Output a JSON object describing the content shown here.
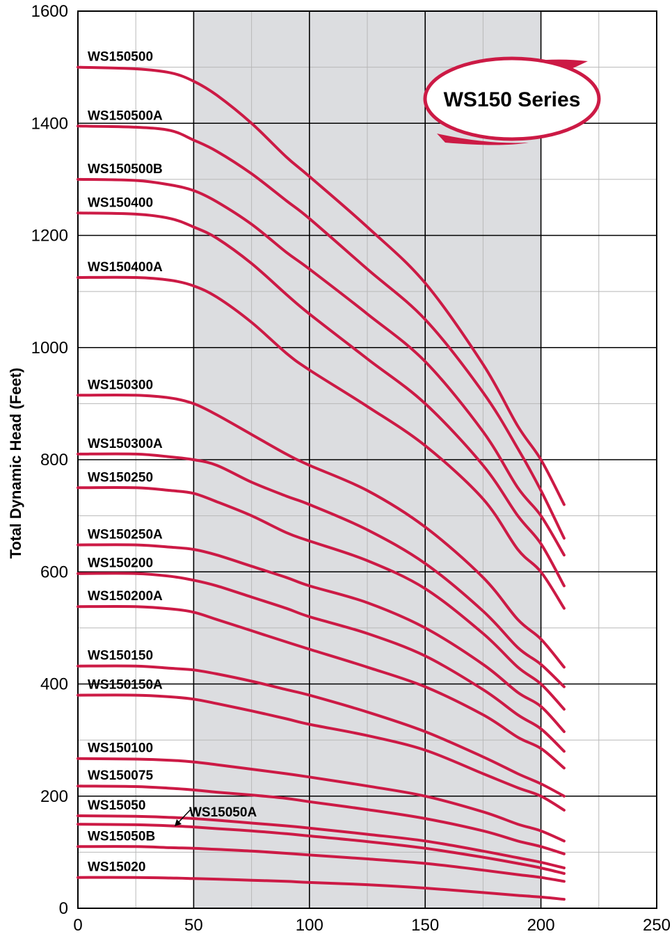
{
  "chart_data": {
    "type": "line",
    "title": "",
    "xlabel": "",
    "ylabel": "Total Dynamic Head (Feet)",
    "xlim": [
      0,
      250
    ],
    "ylim": [
      0,
      1600
    ],
    "xticks": [
      0,
      50,
      100,
      150,
      200,
      250
    ],
    "yticks": [
      0,
      200,
      400,
      600,
      800,
      1000,
      1200,
      1400,
      1600
    ],
    "shaded_range": [
      50,
      200
    ],
    "grid": true,
    "badge": "WS150 Series",
    "colors": {
      "curve": "#cc1a45",
      "shade": "#dcdde0",
      "grid_major": "#000000",
      "grid_minor": "#b8b8b8"
    },
    "series": [
      {
        "name": "WS150500",
        "points": [
          [
            0,
            1500
          ],
          [
            25,
            1497
          ],
          [
            40,
            1490
          ],
          [
            50,
            1475
          ],
          [
            60,
            1450
          ],
          [
            75,
            1400
          ],
          [
            90,
            1340
          ],
          [
            100,
            1305
          ],
          [
            125,
            1215
          ],
          [
            150,
            1115
          ],
          [
            175,
            970
          ],
          [
            190,
            860
          ],
          [
            200,
            800
          ],
          [
            210,
            720
          ]
        ]
      },
      {
        "name": "WS150500A",
        "points": [
          [
            0,
            1395
          ],
          [
            25,
            1393
          ],
          [
            40,
            1387
          ],
          [
            50,
            1370
          ],
          [
            60,
            1350
          ],
          [
            75,
            1310
          ],
          [
            90,
            1262
          ],
          [
            100,
            1230
          ],
          [
            125,
            1140
          ],
          [
            150,
            1050
          ],
          [
            175,
            920
          ],
          [
            190,
            820
          ],
          [
            200,
            745
          ],
          [
            210,
            660
          ]
        ]
      },
      {
        "name": "WS150500B",
        "points": [
          [
            0,
            1300
          ],
          [
            25,
            1298
          ],
          [
            40,
            1290
          ],
          [
            50,
            1280
          ],
          [
            60,
            1260
          ],
          [
            75,
            1220
          ],
          [
            90,
            1170
          ],
          [
            100,
            1140
          ],
          [
            125,
            1060
          ],
          [
            150,
            975
          ],
          [
            175,
            850
          ],
          [
            190,
            750
          ],
          [
            200,
            700
          ],
          [
            210,
            630
          ]
        ]
      },
      {
        "name": "WS150400",
        "points": [
          [
            0,
            1240
          ],
          [
            25,
            1238
          ],
          [
            40,
            1230
          ],
          [
            50,
            1215
          ],
          [
            60,
            1195
          ],
          [
            75,
            1150
          ],
          [
            90,
            1095
          ],
          [
            100,
            1060
          ],
          [
            125,
            980
          ],
          [
            150,
            900
          ],
          [
            175,
            790
          ],
          [
            190,
            700
          ],
          [
            200,
            650
          ],
          [
            210,
            575
          ]
        ]
      },
      {
        "name": "WS150400A",
        "points": [
          [
            0,
            1125
          ],
          [
            25,
            1125
          ],
          [
            40,
            1120
          ],
          [
            50,
            1110
          ],
          [
            60,
            1090
          ],
          [
            75,
            1045
          ],
          [
            90,
            990
          ],
          [
            100,
            960
          ],
          [
            125,
            895
          ],
          [
            150,
            825
          ],
          [
            175,
            730
          ],
          [
            190,
            640
          ],
          [
            200,
            600
          ],
          [
            210,
            535
          ]
        ]
      },
      {
        "name": "WS150300",
        "points": [
          [
            0,
            915
          ],
          [
            25,
            915
          ],
          [
            40,
            910
          ],
          [
            50,
            900
          ],
          [
            60,
            880
          ],
          [
            75,
            845
          ],
          [
            90,
            810
          ],
          [
            100,
            790
          ],
          [
            125,
            745
          ],
          [
            150,
            680
          ],
          [
            175,
            590
          ],
          [
            190,
            515
          ],
          [
            200,
            480
          ],
          [
            210,
            430
          ]
        ]
      },
      {
        "name": "WS150300A",
        "points": [
          [
            0,
            810
          ],
          [
            25,
            810
          ],
          [
            40,
            805
          ],
          [
            50,
            800
          ],
          [
            60,
            790
          ],
          [
            75,
            760
          ],
          [
            90,
            735
          ],
          [
            100,
            720
          ],
          [
            125,
            675
          ],
          [
            150,
            615
          ],
          [
            175,
            530
          ],
          [
            190,
            465
          ],
          [
            200,
            435
          ],
          [
            210,
            395
          ]
        ]
      },
      {
        "name": "WS150250",
        "points": [
          [
            0,
            750
          ],
          [
            25,
            750
          ],
          [
            40,
            745
          ],
          [
            50,
            740
          ],
          [
            60,
            725
          ],
          [
            75,
            700
          ],
          [
            90,
            670
          ],
          [
            100,
            655
          ],
          [
            125,
            620
          ],
          [
            150,
            570
          ],
          [
            175,
            490
          ],
          [
            190,
            430
          ],
          [
            200,
            400
          ],
          [
            210,
            355
          ]
        ]
      },
      {
        "name": "WS150250A",
        "points": [
          [
            0,
            648
          ],
          [
            25,
            648
          ],
          [
            40,
            644
          ],
          [
            50,
            640
          ],
          [
            60,
            630
          ],
          [
            75,
            610
          ],
          [
            90,
            590
          ],
          [
            100,
            575
          ],
          [
            125,
            545
          ],
          [
            150,
            500
          ],
          [
            175,
            435
          ],
          [
            190,
            385
          ],
          [
            200,
            360
          ],
          [
            210,
            315
          ]
        ]
      },
      {
        "name": "WS150200",
        "points": [
          [
            0,
            597
          ],
          [
            25,
            597
          ],
          [
            40,
            592
          ],
          [
            50,
            585
          ],
          [
            60,
            575
          ],
          [
            75,
            555
          ],
          [
            90,
            535
          ],
          [
            100,
            520
          ],
          [
            125,
            490
          ],
          [
            150,
            450
          ],
          [
            175,
            390
          ],
          [
            190,
            345
          ],
          [
            200,
            320
          ],
          [
            210,
            280
          ]
        ]
      },
      {
        "name": "WS150200A",
        "points": [
          [
            0,
            538
          ],
          [
            25,
            538
          ],
          [
            40,
            534
          ],
          [
            50,
            528
          ],
          [
            60,
            515
          ],
          [
            75,
            495
          ],
          [
            90,
            475
          ],
          [
            100,
            462
          ],
          [
            125,
            430
          ],
          [
            150,
            395
          ],
          [
            175,
            345
          ],
          [
            190,
            305
          ],
          [
            200,
            285
          ],
          [
            210,
            250
          ]
        ]
      },
      {
        "name": "WS150150",
        "points": [
          [
            0,
            432
          ],
          [
            25,
            432
          ],
          [
            40,
            428
          ],
          [
            50,
            425
          ],
          [
            60,
            418
          ],
          [
            75,
            405
          ],
          [
            90,
            390
          ],
          [
            100,
            380
          ],
          [
            125,
            350
          ],
          [
            150,
            315
          ],
          [
            175,
            270
          ],
          [
            190,
            240
          ],
          [
            200,
            222
          ],
          [
            210,
            200
          ]
        ]
      },
      {
        "name": "WS150150A",
        "points": [
          [
            0,
            380
          ],
          [
            25,
            380
          ],
          [
            40,
            377
          ],
          [
            50,
            373
          ],
          [
            60,
            365
          ],
          [
            75,
            352
          ],
          [
            90,
            338
          ],
          [
            100,
            328
          ],
          [
            125,
            308
          ],
          [
            150,
            282
          ],
          [
            175,
            240
          ],
          [
            190,
            215
          ],
          [
            200,
            200
          ],
          [
            210,
            175
          ]
        ]
      },
      {
        "name": "WS150100",
        "points": [
          [
            0,
            267
          ],
          [
            25,
            266
          ],
          [
            40,
            264
          ],
          [
            50,
            261
          ],
          [
            60,
            256
          ],
          [
            75,
            248
          ],
          [
            90,
            240
          ],
          [
            100,
            234
          ],
          [
            125,
            218
          ],
          [
            150,
            200
          ],
          [
            175,
            172
          ],
          [
            190,
            150
          ],
          [
            200,
            138
          ],
          [
            210,
            120
          ]
        ]
      },
      {
        "name": "WS150075",
        "points": [
          [
            0,
            218
          ],
          [
            25,
            217
          ],
          [
            40,
            214
          ],
          [
            50,
            211
          ],
          [
            60,
            207
          ],
          [
            75,
            202
          ],
          [
            90,
            196
          ],
          [
            100,
            190
          ],
          [
            125,
            176
          ],
          [
            150,
            160
          ],
          [
            175,
            138
          ],
          [
            190,
            120
          ],
          [
            200,
            110
          ],
          [
            210,
            97
          ]
        ]
      },
      {
        "name": "WS15050",
        "points": [
          [
            0,
            165
          ],
          [
            25,
            164
          ],
          [
            40,
            162
          ],
          [
            50,
            160
          ],
          [
            60,
            157
          ],
          [
            75,
            152
          ],
          [
            90,
            147
          ],
          [
            100,
            143
          ],
          [
            125,
            132
          ],
          [
            150,
            120
          ],
          [
            175,
            102
          ],
          [
            190,
            90
          ],
          [
            200,
            82
          ],
          [
            210,
            72
          ]
        ]
      },
      {
        "name": "WS15050A",
        "points": [
          [
            0,
            150
          ],
          [
            25,
            149
          ],
          [
            40,
            147
          ],
          [
            50,
            145
          ],
          [
            60,
            142
          ],
          [
            75,
            138
          ],
          [
            90,
            133
          ],
          [
            100,
            129
          ],
          [
            125,
            119
          ],
          [
            150,
            107
          ],
          [
            175,
            91
          ],
          [
            190,
            80
          ],
          [
            200,
            72
          ],
          [
            210,
            62
          ]
        ]
      },
      {
        "name": "WS15050B",
        "points": [
          [
            0,
            110
          ],
          [
            25,
            110
          ],
          [
            40,
            108
          ],
          [
            50,
            107
          ],
          [
            60,
            105
          ],
          [
            75,
            102
          ],
          [
            90,
            98
          ],
          [
            100,
            95
          ],
          [
            125,
            88
          ],
          [
            150,
            80
          ],
          [
            175,
            68
          ],
          [
            190,
            60
          ],
          [
            200,
            55
          ],
          [
            210,
            48
          ]
        ]
      },
      {
        "name": "WS15020",
        "points": [
          [
            0,
            55
          ],
          [
            25,
            55
          ],
          [
            40,
            54
          ],
          [
            50,
            53
          ],
          [
            60,
            52
          ],
          [
            75,
            50
          ],
          [
            90,
            48
          ],
          [
            100,
            46
          ],
          [
            125,
            42
          ],
          [
            150,
            36
          ],
          [
            175,
            28
          ],
          [
            190,
            23
          ],
          [
            200,
            20
          ],
          [
            210,
            16
          ]
        ]
      }
    ]
  }
}
